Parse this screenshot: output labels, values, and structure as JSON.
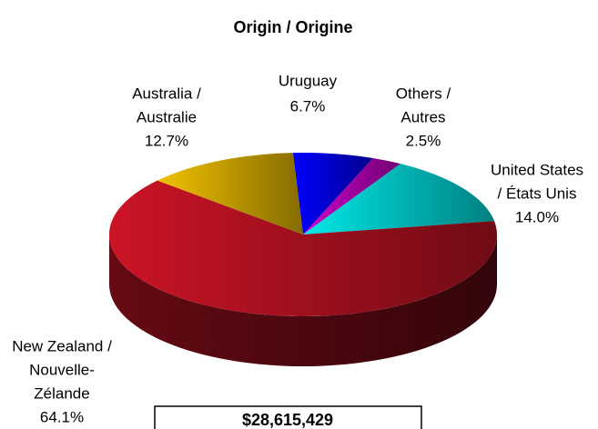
{
  "chart_data": {
    "type": "pie3d",
    "title": "Origin / Origine",
    "categories": [
      [
        "Uruguay"
      ],
      [
        "Others /",
        "Autres"
      ],
      [
        "United States",
        "/ États Unis"
      ],
      [
        "New Zealand /",
        "Nouvelle-",
        "Zélande"
      ],
      [
        "Australia /",
        "Australie"
      ]
    ],
    "values": [
      6.7,
      2.5,
      14.0,
      64.1,
      12.7
    ],
    "value_labels": [
      "6.7%",
      "2.5%",
      "14.0%",
      "64.1%",
      "12.7%"
    ],
    "colors": [
      "#0000ff",
      "#cc00cc",
      "#00e8e8",
      "#cc1426",
      "#f2c200"
    ],
    "annotation": "$28,615,429"
  }
}
